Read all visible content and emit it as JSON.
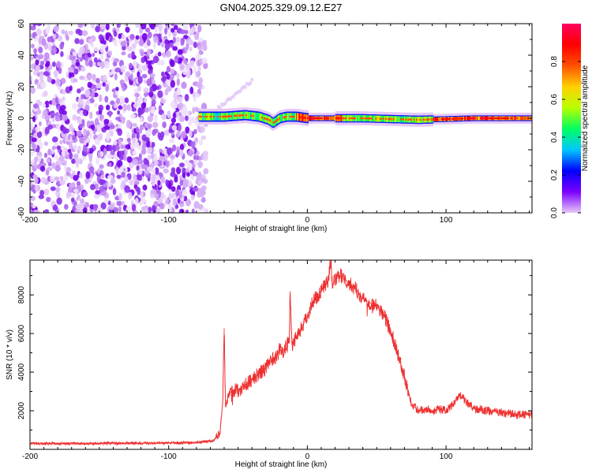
{
  "figure": {
    "title": "GN04.2025.329.09.12.E27"
  },
  "chart_data": [
    {
      "type": "heatmap",
      "xlabel": "Height of straight line (km)",
      "ylabel": "Frequency (Hz)",
      "xlim": [
        -200,
        162
      ],
      "ylim": [
        -60,
        60
      ],
      "xticks": [
        -200,
        -100,
        0,
        100
      ],
      "yticks": [
        -60,
        -40,
        -20,
        0,
        20,
        40,
        60
      ],
      "colorbar": {
        "label": "Normalized spectral amplitude",
        "range": [
          0,
          1
        ],
        "ticks": [
          "0.0",
          "0.2",
          "0.4",
          "0.6",
          "0.8"
        ],
        "tick_values": [
          0.0,
          0.2,
          0.4,
          0.6,
          0.8
        ],
        "colors": [
          "#e6c8f8",
          "#7b00ff",
          "#0000ff",
          "#00c8ff",
          "#00ff60",
          "#b8ff00",
          "#ffd000",
          "#ff5000",
          "#ff0000",
          "#ff0060"
        ]
      },
      "regions": [
        {
          "name": "noise",
          "x_range": [
            -200,
            -73
          ],
          "freq_range": [
            -60,
            60
          ],
          "amplitude": 0.05
        },
        {
          "name": "signal-band",
          "x_range": [
            -78,
            162
          ],
          "freq_center": 0,
          "freq_halfwidth": 3,
          "amplitude_range": [
            0.3,
            1.0
          ]
        },
        {
          "name": "faint-streak",
          "x_range": [
            -70,
            -40
          ],
          "freq_range": [
            2,
            24
          ],
          "amplitude": 0.05
        }
      ],
      "band_path": [
        {
          "x": -78,
          "f": 1
        },
        {
          "x": -60,
          "f": 1
        },
        {
          "x": -45,
          "f": 2
        },
        {
          "x": -35,
          "f": 1
        },
        {
          "x": -28,
          "f": -1
        },
        {
          "x": -25,
          "f": -3
        },
        {
          "x": -20,
          "f": 0
        },
        {
          "x": -15,
          "f": 1
        },
        {
          "x": -8,
          "f": 1
        },
        {
          "x": 0,
          "f": 0
        },
        {
          "x": 40,
          "f": 0
        },
        {
          "x": 80,
          "f": -1
        },
        {
          "x": 120,
          "f": 0
        },
        {
          "x": 162,
          "f": 0
        }
      ]
    },
    {
      "type": "line",
      "xlabel": "Height of straight line (km)",
      "ylabel": "SNR (10 * v/v)",
      "xlim": [
        -200,
        162
      ],
      "ylim": [
        0,
        9800
      ],
      "xticks": [
        -200,
        -100,
        0,
        100
      ],
      "yticks": [
        2000,
        4000,
        6000,
        8000
      ],
      "color": "#ee3030",
      "series": [
        {
          "x": [
            -200,
            -180,
            -160,
            -140,
            -120,
            -100,
            -80,
            -68,
            -63,
            -61,
            -60,
            -59,
            -57,
            -55,
            -50,
            -45,
            -40,
            -35,
            -30,
            -25,
            -22,
            -20,
            -18,
            -15,
            -13,
            -12.5,
            -11,
            -7,
            -5,
            -2,
            0,
            3,
            5,
            8,
            10,
            12,
            15,
            17,
            18,
            20,
            25,
            30,
            35,
            40,
            45,
            50,
            55,
            60,
            65,
            70,
            75,
            80,
            85,
            90,
            95,
            100,
            105,
            110,
            120,
            130,
            140,
            150,
            162
          ],
          "y": [
            300,
            300,
            300,
            320,
            320,
            330,
            350,
            450,
            800,
            2500,
            6300,
            2200,
            2800,
            3000,
            3100,
            3300,
            3600,
            3900,
            4200,
            4700,
            4800,
            5200,
            5000,
            5500,
            5600,
            8200,
            5400,
            6000,
            6200,
            6600,
            6900,
            7500,
            7800,
            8000,
            8200,
            8500,
            8700,
            9800,
            8400,
            8800,
            9000,
            8600,
            8300,
            7800,
            7600,
            7400,
            7000,
            6200,
            5000,
            3800,
            2400,
            2000,
            2100,
            2000,
            2100,
            2000,
            2300,
            2800,
            2100,
            2000,
            1900,
            1800,
            1800
          ]
        }
      ]
    }
  ]
}
